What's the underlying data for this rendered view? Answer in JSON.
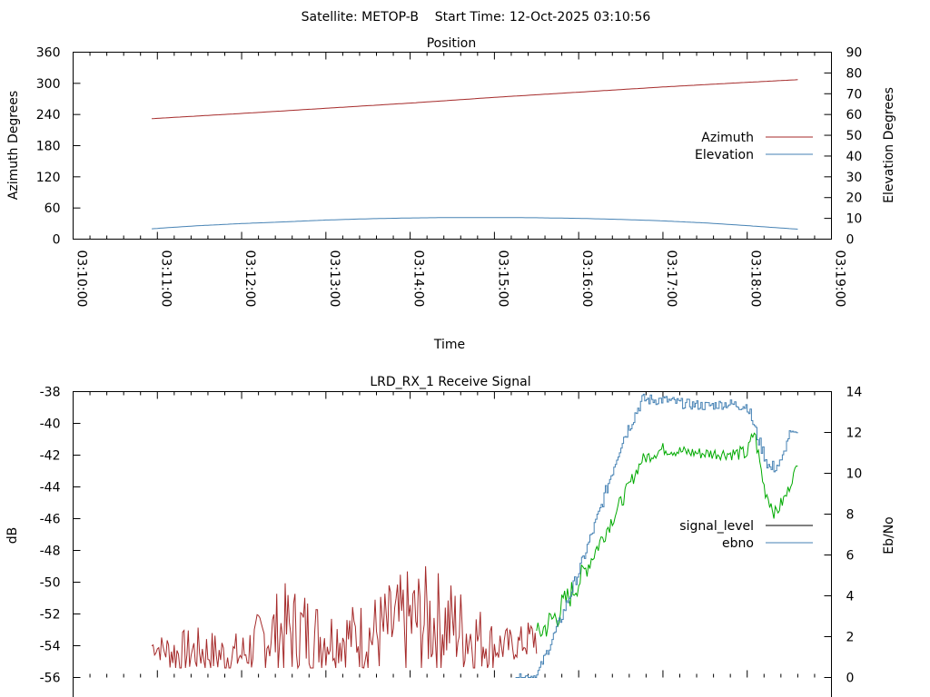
{
  "header": {
    "title": "Satellite: METOP-B    Start Time: 12-Oct-2025 03:10:56"
  },
  "chart_data": [
    {
      "type": "line",
      "title": "Position",
      "xlabel": "Time",
      "ylabel": "Azimuth Degrees",
      "y2label": "Elevation Degrees",
      "xlim": [
        "03:10:00",
        "03:19:00"
      ],
      "ylim": [
        0,
        360
      ],
      "y2lim": [
        0,
        90
      ],
      "x_ticks": [
        "03:10:00",
        "03:11:00",
        "03:12:00",
        "03:13:00",
        "03:14:00",
        "03:15:00",
        "03:16:00",
        "03:17:00",
        "03:18:00",
        "03:19:00"
      ],
      "y_ticks": [
        "0",
        "60",
        "120",
        "180",
        "240",
        "300",
        "360"
      ],
      "y2_ticks": [
        "0",
        "10",
        "20",
        "30",
        "40",
        "50",
        "60",
        "70",
        "80",
        "90"
      ],
      "legend_position": "right",
      "grid": false,
      "series": [
        {
          "name": "Azimuth",
          "axis": "y",
          "color": "#a52a2a",
          "x": [
            "03:10:56",
            "03:12:00",
            "03:13:00",
            "03:14:00",
            "03:15:00",
            "03:16:00",
            "03:17:00",
            "03:18:00",
            "03:18:36"
          ],
          "values": [
            232,
            242,
            252,
            262,
            273,
            283,
            293,
            302,
            307
          ]
        },
        {
          "name": "Elevation",
          "axis": "y2",
          "color": "#4682b4",
          "x": [
            "03:10:56",
            "03:11:30",
            "03:12:00",
            "03:12:30",
            "03:13:00",
            "03:13:30",
            "03:14:00",
            "03:14:30",
            "03:15:00",
            "03:15:30",
            "03:16:00",
            "03:16:30",
            "03:17:00",
            "03:17:30",
            "03:18:00",
            "03:18:36"
          ],
          "values": [
            5,
            6.5,
            7.5,
            8.3,
            9.2,
            9.8,
            10.2,
            10.4,
            10.4,
            10.3,
            10,
            9.5,
            8.8,
            7.8,
            6.5,
            4.8
          ]
        }
      ]
    },
    {
      "type": "line",
      "title": "LRD_RX_1 Receive Signal",
      "xlabel": "",
      "ylabel": "dB",
      "y2label": "Eb/No",
      "xlim": [
        "03:10:00",
        "03:19:00"
      ],
      "ylim": [
        -56,
        -38
      ],
      "y2lim": [
        0,
        14
      ],
      "y_ticks": [
        "-38",
        "-40",
        "-42",
        "-44",
        "-46",
        "-48",
        "-50",
        "-52",
        "-54",
        "-56"
      ],
      "y2_ticks": [
        "0",
        "2",
        "4",
        "6",
        "8",
        "10",
        "12",
        "14"
      ],
      "legend_position": "right",
      "grid": false,
      "series": [
        {
          "name": "signal_level",
          "axis": "y",
          "color_legend": "#000000",
          "segments": [
            {
              "color": "#a52a2a",
              "x": [
                "03:10:56",
                "03:11:15",
                "03:11:30",
                "03:11:45",
                "03:12:00",
                "03:12:15",
                "03:12:30",
                "03:12:45",
                "03:13:00",
                "03:13:15",
                "03:13:30",
                "03:13:45",
                "03:14:00",
                "03:14:15",
                "03:14:30",
                "03:14:45",
                "03:15:00",
                "03:15:15",
                "03:15:30"
              ],
              "values": [
                -54,
                -54.5,
                -54.3,
                -54.6,
                -54.6,
                -53.5,
                -53,
                -53.2,
                -53.5,
                -53.4,
                -53.4,
                -53,
                -52.5,
                -52.4,
                -52.7,
                -53.4,
                -54,
                -54,
                -53.4
              ],
              "jitter": [
                0.6,
                1.5,
                1.5,
                1.5,
                1.5,
                2,
                3,
                3,
                2,
                2,
                2.5,
                3,
                3.5,
                3.5,
                3,
                2.5,
                1.5,
                1,
                1.5
              ]
            },
            {
              "color": "#00aa00",
              "x": [
                "03:15:30",
                "03:15:45",
                "03:16:00",
                "03:16:15",
                "03:16:30",
                "03:16:45",
                "03:17:00",
                "03:17:15",
                "03:17:30",
                "03:17:45",
                "03:18:00",
                "03:18:05",
                "03:18:12",
                "03:18:20",
                "03:18:28",
                "03:18:36"
              ],
              "values": [
                -53.4,
                -52,
                -50,
                -47.5,
                -45,
                -42.3,
                -41.6,
                -41.8,
                -41.9,
                -41.9,
                -41.9,
                -40.5,
                -44,
                -45.7,
                -44.5,
                -42.5
              ],
              "jitter": [
                0.8,
                1,
                0.8,
                0.6,
                0.5,
                0.4,
                0.4,
                0.4,
                0.4,
                0.4,
                0.5,
                0.5,
                0.6,
                0.5,
                0.4,
                0.2
              ]
            }
          ]
        },
        {
          "name": "ebno",
          "axis": "y2",
          "color": "#4682b4",
          "x": [
            "03:15:15",
            "03:15:30",
            "03:15:45",
            "03:16:00",
            "03:16:15",
            "03:16:30",
            "03:16:45",
            "03:17:00",
            "03:17:15",
            "03:17:30",
            "03:17:45",
            "03:18:00",
            "03:18:08",
            "03:18:16",
            "03:18:24",
            "03:18:30",
            "03:18:36"
          ],
          "values": [
            0,
            0.1,
            2.5,
            5.2,
            8.2,
            11.5,
            13.6,
            13.6,
            13.4,
            13.3,
            13.4,
            13.3,
            11.6,
            10.2,
            10.5,
            12,
            12
          ],
          "jitter": [
            0.15,
            0.2,
            0.3,
            0.3,
            0.3,
            0.4,
            0.3,
            0.25,
            0.25,
            0.25,
            0.25,
            0.3,
            0.3,
            0.4,
            0.3,
            0.1,
            0
          ]
        }
      ]
    }
  ]
}
